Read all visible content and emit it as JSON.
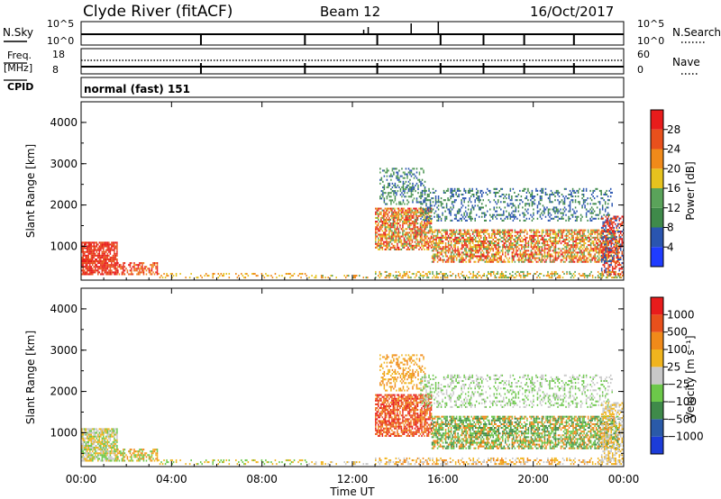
{
  "header": {
    "station": "Clyde River (fitACF)",
    "beam": "Beam 12",
    "date": "16/Oct/2017"
  },
  "status_panels": {
    "nsky": {
      "label": "N.Sky",
      "tick_top": "10^5",
      "tick_bottom": "10^0",
      "right_label": "N.Search",
      "right_tick_top": "10^5",
      "right_tick_bottom": "10^0"
    },
    "freq": {
      "label_top": "Freq.",
      "label_bottom": "[MHz]",
      "tick_top": "18",
      "tick_bottom": "8",
      "right_label": "Nave",
      "right_tick_top": "60",
      "right_tick_bottom": "0"
    },
    "cpid": {
      "label": "CPID",
      "value": "normal (fast) 151"
    }
  },
  "chart_data": [
    {
      "type": "heatmap",
      "name": "power-panel",
      "ylabel": "Slant Range [km]",
      "ylim": [
        180,
        4500
      ],
      "yticks": [
        "1000",
        "2000",
        "3000",
        "4000"
      ],
      "xlim": [
        0,
        24
      ],
      "colorbar": {
        "label": "Power [dB]",
        "ticks": [
          "4",
          "8",
          "12",
          "16",
          "20",
          "24",
          "28"
        ],
        "colors": [
          "#1f3cff",
          "#2a55b0",
          "#3f8a4a",
          "#5aa35a",
          "#e6c21e",
          "#f08a1a",
          "#e8501c",
          "#e81c1c"
        ]
      }
    },
    {
      "type": "heatmap",
      "name": "velocity-panel",
      "ylabel": "Slant Range [km]",
      "ylim": [
        180,
        4500
      ],
      "yticks": [
        "1000",
        "2000",
        "3000",
        "4000"
      ],
      "xlim": [
        0,
        24
      ],
      "xticks": [
        "00:00",
        "04:00",
        "08:00",
        "12:00",
        "16:00",
        "20:00",
        "00:00"
      ],
      "xlabel": "Time UT",
      "colorbar": {
        "label": "Velocity [m s⁻¹]",
        "ticks": [
          "1000",
          "500",
          "100",
          "25",
          "−25",
          "−100",
          "−500",
          "−1000"
        ],
        "colors": [
          "#1c3cd8",
          "#2a5aa8",
          "#3f8a4a",
          "#6cc84a",
          "#c8c8c8",
          "#f0b41e",
          "#f08a1a",
          "#e8501c",
          "#e81c1c"
        ]
      }
    }
  ]
}
